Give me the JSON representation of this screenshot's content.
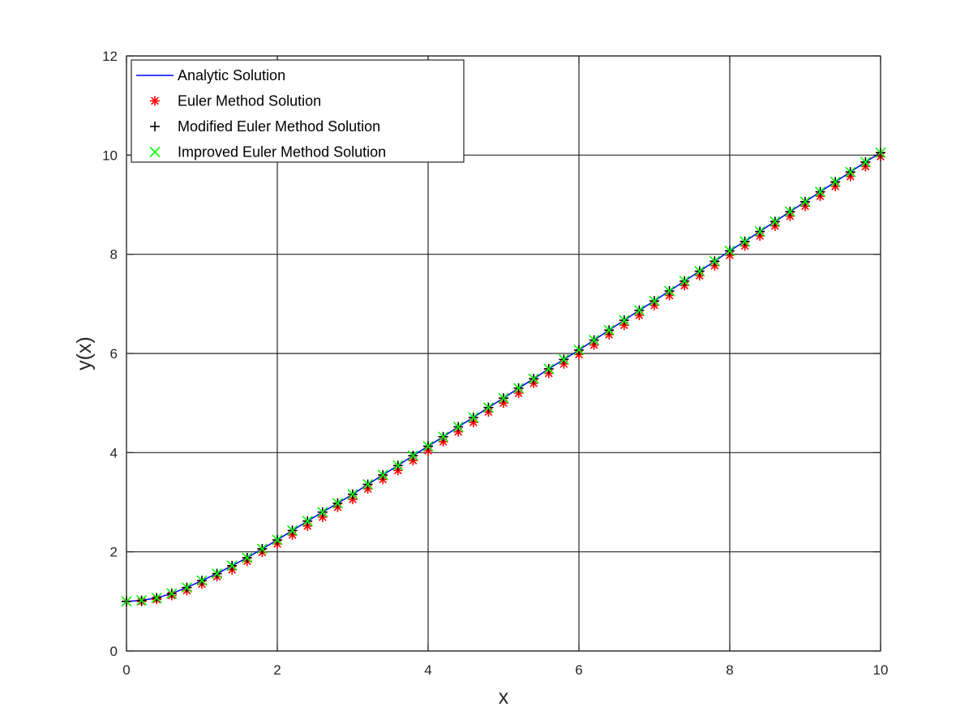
{
  "chart_data": {
    "type": "line",
    "title": "",
    "xlabel": "x",
    "ylabel": "y(x)",
    "xlim": [
      0,
      10
    ],
    "ylim": [
      0,
      12
    ],
    "xticks": [
      0,
      2,
      4,
      6,
      8,
      10
    ],
    "yticks": [
      0,
      2,
      4,
      6,
      8,
      10,
      12
    ],
    "grid": true,
    "legend_position": "top-left",
    "x": [
      0,
      0.2,
      0.4,
      0.6,
      0.8,
      1.0,
      1.2,
      1.4,
      1.6,
      1.8,
      2.0,
      2.2,
      2.4,
      2.6,
      2.8,
      3.0,
      3.2,
      3.4,
      3.6,
      3.8,
      4.0,
      4.2,
      4.4,
      4.6,
      4.8,
      5.0,
      5.2,
      5.4,
      5.6,
      5.8,
      6.0,
      6.2,
      6.4,
      6.6,
      6.8,
      7.0,
      7.2,
      7.4,
      7.6,
      7.8,
      8.0,
      8.2,
      8.4,
      8.6,
      8.8,
      9.0,
      9.2,
      9.4,
      9.6,
      9.8,
      10.0
    ],
    "series": [
      {
        "name": "Analytic Solution",
        "style": "line",
        "color": "#0000ff",
        "values": [
          1.0,
          1.02,
          1.07,
          1.16,
          1.28,
          1.42,
          1.56,
          1.72,
          1.88,
          2.06,
          2.24,
          2.43,
          2.62,
          2.8,
          2.98,
          3.16,
          3.36,
          3.55,
          3.74,
          3.94,
          4.13,
          4.32,
          4.52,
          4.71,
          4.91,
          5.1,
          5.3,
          5.49,
          5.69,
          5.88,
          6.07,
          6.27,
          6.47,
          6.67,
          6.87,
          7.06,
          7.26,
          7.46,
          7.66,
          7.86,
          8.07,
          8.26,
          8.46,
          8.66,
          8.86,
          9.06,
          9.26,
          9.46,
          9.66,
          9.86,
          10.05
        ]
      },
      {
        "name": "Euler Method Solution",
        "style": "asterisk",
        "color": "#ff0000",
        "values": [
          1.0,
          1.0,
          1.04,
          1.12,
          1.22,
          1.35,
          1.5,
          1.64,
          1.81,
          1.99,
          2.16,
          2.34,
          2.52,
          2.7,
          2.9,
          3.06,
          3.27,
          3.46,
          3.64,
          3.84,
          4.04,
          4.22,
          4.42,
          4.61,
          4.82,
          5.0,
          5.2,
          5.4,
          5.6,
          5.79,
          5.98,
          6.17,
          6.38,
          6.57,
          6.77,
          6.97,
          7.17,
          7.37,
          7.57,
          7.77,
          7.98,
          8.17,
          8.37,
          8.57,
          8.77,
          8.97,
          9.17,
          9.37,
          9.57,
          9.77,
          9.97
        ]
      },
      {
        "name": "Modified Euler Method Solution",
        "style": "plus",
        "color": "#000000",
        "values": [
          1.0,
          1.02,
          1.07,
          1.16,
          1.28,
          1.42,
          1.56,
          1.72,
          1.88,
          2.06,
          2.24,
          2.43,
          2.62,
          2.8,
          2.98,
          3.16,
          3.36,
          3.55,
          3.74,
          3.94,
          4.13,
          4.32,
          4.52,
          4.71,
          4.91,
          5.1,
          5.3,
          5.49,
          5.69,
          5.88,
          6.07,
          6.27,
          6.47,
          6.67,
          6.87,
          7.06,
          7.26,
          7.46,
          7.66,
          7.86,
          8.07,
          8.26,
          8.46,
          8.66,
          8.86,
          9.06,
          9.26,
          9.46,
          9.66,
          9.86,
          10.05
        ]
      },
      {
        "name": "Improved Euler Method Solution",
        "style": "cross",
        "color": "#00ff00",
        "values": [
          1.0,
          1.02,
          1.07,
          1.16,
          1.28,
          1.42,
          1.56,
          1.72,
          1.88,
          2.06,
          2.24,
          2.43,
          2.62,
          2.8,
          2.98,
          3.16,
          3.36,
          3.55,
          3.74,
          3.94,
          4.13,
          4.32,
          4.52,
          4.71,
          4.91,
          5.1,
          5.3,
          5.49,
          5.69,
          5.88,
          6.07,
          6.27,
          6.47,
          6.67,
          6.87,
          7.06,
          7.26,
          7.46,
          7.66,
          7.86,
          8.07,
          8.26,
          8.46,
          8.66,
          8.86,
          9.06,
          9.26,
          9.46,
          9.66,
          9.86,
          10.05
        ]
      }
    ]
  }
}
